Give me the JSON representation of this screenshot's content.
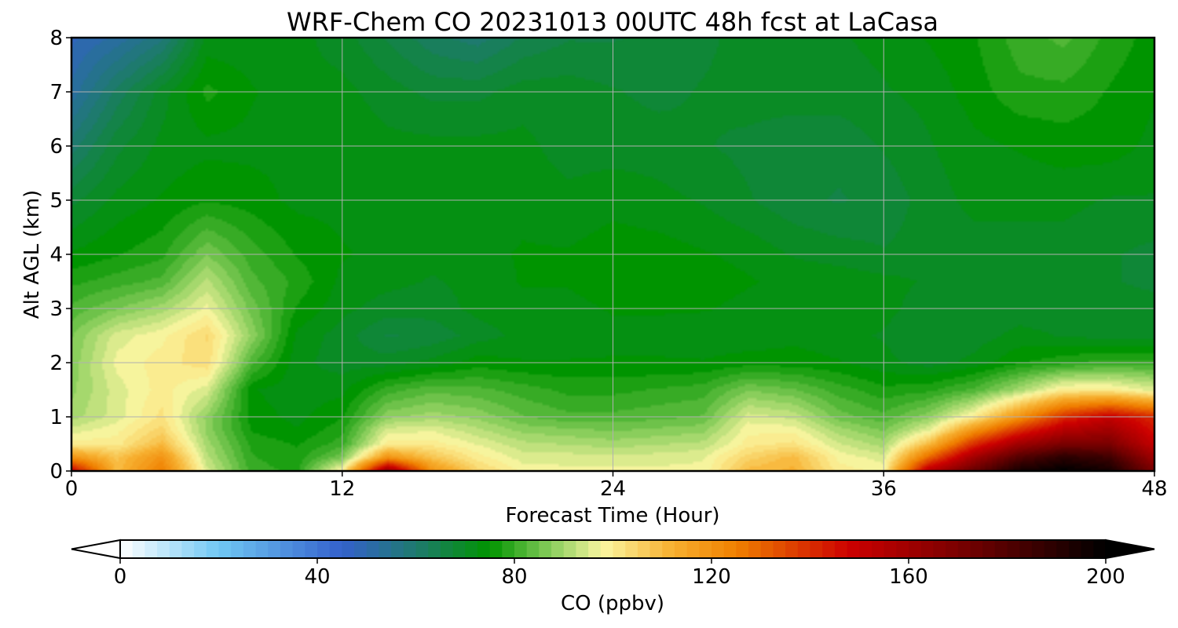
{
  "chart_data": {
    "type": "heatmap",
    "title": "WRF-Chem CO  20231013 00UTC 48h fcst at LaCasa",
    "xlabel": "Forecast Time (Hour)",
    "ylabel": "Alt AGL (km)",
    "xlim": [
      0,
      48
    ],
    "ylim": [
      0,
      8
    ],
    "x_ticks": [
      "0",
      "12",
      "24",
      "36",
      "48"
    ],
    "y_ticks": [
      "0",
      "1",
      "2",
      "3",
      "4",
      "5",
      "6",
      "7",
      "8"
    ],
    "grid": true,
    "colorbar": {
      "label": "CO  (ppbv)",
      "range": [
        0,
        200
      ],
      "ticks": [
        "0",
        "40",
        "80",
        "120",
        "160",
        "200"
      ],
      "extend": "both",
      "orientation": "horizontal",
      "stops": [
        {
          "v": 0,
          "c": "#ffffff"
        },
        {
          "v": 20,
          "c": "#70c8f4"
        },
        {
          "v": 45,
          "c": "#3461cc"
        },
        {
          "v": 60,
          "c": "#1e7a6e"
        },
        {
          "v": 75,
          "c": "#009400"
        },
        {
          "v": 88,
          "c": "#8fd060"
        },
        {
          "v": 98,
          "c": "#fbf6a0"
        },
        {
          "v": 112,
          "c": "#f7b030"
        },
        {
          "v": 125,
          "c": "#f08000"
        },
        {
          "v": 148,
          "c": "#cc0000"
        },
        {
          "v": 170,
          "c": "#7a0000"
        },
        {
          "v": 200,
          "c": "#000000"
        }
      ]
    },
    "x": [
      0,
      2,
      4,
      6,
      8,
      10,
      12,
      14,
      16,
      18,
      20,
      22,
      24,
      26,
      28,
      30,
      32,
      34,
      36,
      38,
      40,
      42,
      44,
      46,
      48
    ],
    "y": [
      0,
      0.25,
      0.5,
      0.75,
      1,
      1.5,
      2,
      2.5,
      3,
      3.5,
      4,
      5,
      6,
      7,
      8
    ],
    "z": [
      [
        150,
        110,
        125,
        95,
        80,
        78,
        100,
        165,
        120,
        105,
        98,
        97,
        97,
        97,
        97,
        110,
        112,
        100,
        98,
        155,
        175,
        195,
        200,
        195,
        170
      ],
      [
        120,
        108,
        120,
        92,
        79,
        77,
        86,
        120,
        108,
        100,
        95,
        95,
        95,
        95,
        96,
        105,
        110,
        98,
        95,
        130,
        160,
        180,
        190,
        185,
        160
      ],
      [
        100,
        100,
        110,
        90,
        78,
        76,
        80,
        100,
        100,
        96,
        92,
        91,
        90,
        91,
        92,
        100,
        102,
        94,
        90,
        110,
        140,
        160,
        170,
        170,
        150
      ],
      [
        95,
        98,
        105,
        88,
        76,
        74,
        78,
        95,
        96,
        92,
        88,
        87,
        86,
        87,
        88,
        98,
        98,
        90,
        86,
        96,
        120,
        140,
        155,
        160,
        145
      ],
      [
        90,
        95,
        102,
        88,
        75,
        73,
        76,
        88,
        90,
        88,
        84,
        82,
        82,
        83,
        84,
        95,
        93,
        85,
        82,
        88,
        100,
        120,
        140,
        150,
        140
      ],
      [
        88,
        95,
        100,
        95,
        74,
        72,
        73,
        80,
        83,
        82,
        80,
        78,
        78,
        79,
        80,
        86,
        84,
        80,
        77,
        78,
        82,
        90,
        100,
        100,
        95
      ],
      [
        87,
        97,
        100,
        103,
        82,
        72,
        70,
        70,
        72,
        75,
        74,
        74,
        74,
        74,
        74,
        75,
        75,
        74,
        72,
        70,
        72,
        76,
        78,
        80,
        80
      ],
      [
        86,
        95,
        98,
        104,
        88,
        73,
        70,
        66,
        67,
        70,
        72,
        72,
        73,
        73,
        72,
        72,
        73,
        72,
        71,
        69,
        70,
        72,
        71,
        70,
        70
      ],
      [
        82,
        86,
        90,
        97,
        85,
        76,
        72,
        70,
        70,
        72,
        73,
        73,
        74,
        74,
        74,
        73,
        73,
        73,
        72,
        70,
        70,
        70,
        70,
        70,
        70
      ],
      [
        78,
        80,
        82,
        92,
        82,
        78,
        73,
        72,
        71,
        72,
        74,
        74,
        75,
        75,
        75,
        74,
        73,
        73,
        72,
        71,
        70,
        70,
        70,
        69,
        68
      ],
      [
        74,
        76,
        78,
        86,
        80,
        76,
        74,
        73,
        72,
        73,
        74,
        74,
        75,
        75,
        74,
        73,
        71,
        70,
        69,
        70,
        70,
        70,
        70,
        69,
        68
      ],
      [
        68,
        72,
        74,
        76,
        75,
        73,
        73,
        72,
        72,
        72,
        73,
        72,
        73,
        72,
        71,
        69,
        67,
        66,
        67,
        70,
        72,
        72,
        72,
        71,
        71
      ],
      [
        60,
        68,
        72,
        73,
        73,
        73,
        73,
        72,
        72,
        72,
        72,
        70,
        70,
        70,
        69,
        68,
        67,
        67,
        69,
        71,
        73,
        74,
        75,
        75,
        73
      ],
      [
        52,
        62,
        70,
        77,
        74,
        72,
        72,
        70,
        68,
        68,
        70,
        70,
        69,
        68,
        69,
        70,
        70,
        70,
        71,
        72,
        75,
        78,
        78,
        76,
        74
      ],
      [
        48,
        52,
        58,
        72,
        72,
        72,
        70,
        66,
        62,
        60,
        64,
        66,
        66,
        67,
        68,
        70,
        70,
        71,
        72,
        74,
        76,
        80,
        82,
        78,
        75
      ]
    ]
  }
}
